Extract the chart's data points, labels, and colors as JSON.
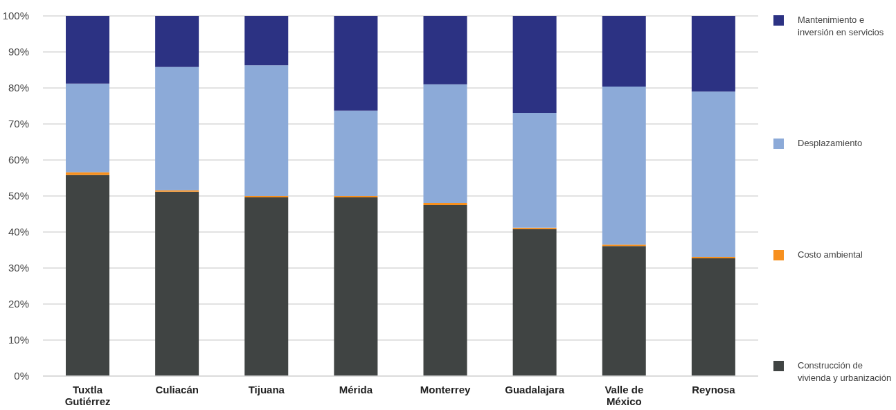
{
  "chart_data": {
    "type": "bar",
    "stacked": true,
    "categories": [
      "Tuxtla Gutiérrez",
      "Culiacán",
      "Tijuana",
      "Mérida",
      "Monterrey",
      "Guadalajara",
      "Valle de México",
      "Reynosa"
    ],
    "series": [
      {
        "name": "Construcción de vivienda y urbanización",
        "color": "#404443",
        "values": [
          55.8,
          51.2,
          49.6,
          49.6,
          47.5,
          40.8,
          36.1,
          32.7
        ]
      },
      {
        "name": "Costo ambiental",
        "color": "#f7901e",
        "values": [
          0.8,
          0.4,
          0.4,
          0.4,
          0.6,
          0.4,
          0.4,
          0.4
        ]
      },
      {
        "name": "Desplazamiento",
        "color": "#8caad8",
        "values": [
          24.6,
          34.2,
          36.3,
          23.7,
          32.9,
          31.9,
          43.9,
          45.9
        ]
      },
      {
        "name": "Mantenimiento e inversión en servicios",
        "color": "#2c3283",
        "values": [
          18.8,
          14.2,
          13.7,
          26.3,
          19.0,
          26.9,
          19.6,
          21.0
        ]
      }
    ],
    "ylim": [
      0,
      100
    ],
    "yticks": [
      {
        "value": 0,
        "label": "0%"
      },
      {
        "value": 10,
        "label": "10%"
      },
      {
        "value": 20,
        "label": "20%"
      },
      {
        "value": 30,
        "label": "30%"
      },
      {
        "value": 40,
        "label": "40%"
      },
      {
        "value": 50,
        "label": "50%"
      },
      {
        "value": 60,
        "label": "60%"
      },
      {
        "value": 70,
        "label": "70%"
      },
      {
        "value": 80,
        "label": "80%"
      },
      {
        "value": 90,
        "label": "90%"
      },
      {
        "value": 100,
        "label": "100%"
      }
    ],
    "grid": "y",
    "legend": "right"
  }
}
